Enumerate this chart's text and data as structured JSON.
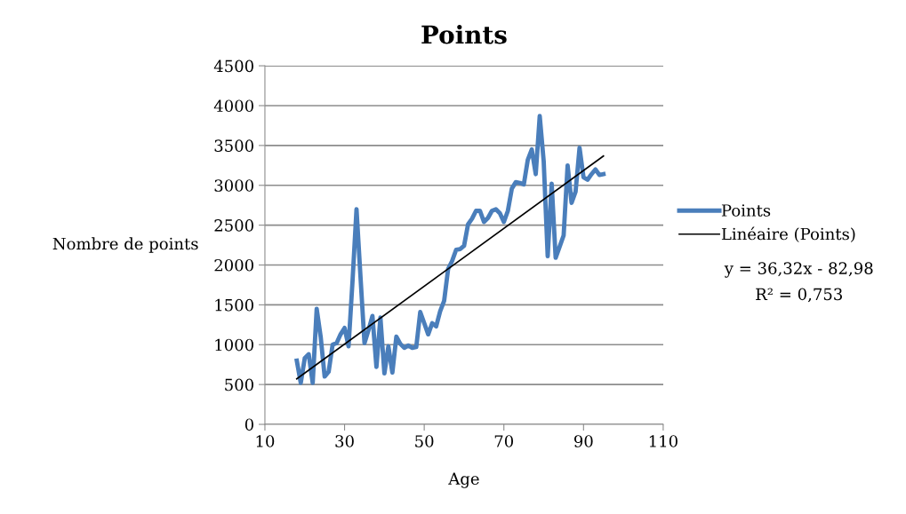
{
  "chart_data": {
    "type": "line",
    "title": "Points",
    "xlabel": "Age",
    "ylabel": "Nombre de points",
    "xlim": [
      10,
      110
    ],
    "xticks": [
      10,
      30,
      50,
      70,
      90,
      110
    ],
    "ylim": [
      0,
      4500
    ],
    "yticks": [
      0,
      500,
      1000,
      1500,
      2000,
      2500,
      3000,
      3500,
      4000,
      4500
    ],
    "grid": "y",
    "legend": "right",
    "marker": "none",
    "line_style": "solid",
    "series": [
      {
        "name": "Points",
        "color": "#4a7ebb",
        "x": [
          18,
          19,
          20,
          21,
          22,
          23,
          24,
          25,
          26,
          27,
          28,
          29,
          30,
          31,
          32,
          33,
          34,
          35,
          36,
          37,
          38,
          39,
          40,
          41,
          42,
          43,
          44,
          45,
          46,
          47,
          48,
          49,
          50,
          51,
          52,
          53,
          54,
          55,
          56,
          57,
          58,
          59,
          60,
          61,
          62,
          63,
          64,
          65,
          66,
          67,
          68,
          69,
          70,
          71,
          72,
          73,
          74,
          75,
          76,
          77,
          78,
          79,
          80,
          81,
          82,
          83,
          84,
          85,
          86,
          87,
          88,
          89,
          90,
          91,
          92,
          93,
          94,
          95
        ],
        "values": [
          800,
          520,
          830,
          880,
          520,
          1450,
          1100,
          600,
          660,
          1000,
          1020,
          1130,
          1210,
          980,
          1800,
          2700,
          1850,
          1020,
          1180,
          1360,
          720,
          1340,
          640,
          980,
          650,
          1100,
          1010,
          960,
          990,
          960,
          970,
          1410,
          1270,
          1130,
          1270,
          1230,
          1420,
          1550,
          1950,
          2050,
          2190,
          2200,
          2240,
          2510,
          2580,
          2680,
          2680,
          2540,
          2590,
          2680,
          2700,
          2650,
          2540,
          2680,
          2960,
          3040,
          3030,
          3010,
          3320,
          3450,
          3140,
          3870,
          3300,
          2110,
          3020,
          2090,
          2230,
          2370,
          3250,
          2780,
          2920,
          3470,
          3100,
          3070,
          3140,
          3200,
          3130,
          3140
        ]
      },
      {
        "name": "Linéaire (Points)",
        "color": "#000000",
        "type": "line",
        "x": [
          18,
          95
        ],
        "values": [
          570.8,
          3367.4
        ]
      }
    ],
    "annotations": [
      "y = 36,32x - 82,98",
      "R² = 0,753"
    ]
  }
}
